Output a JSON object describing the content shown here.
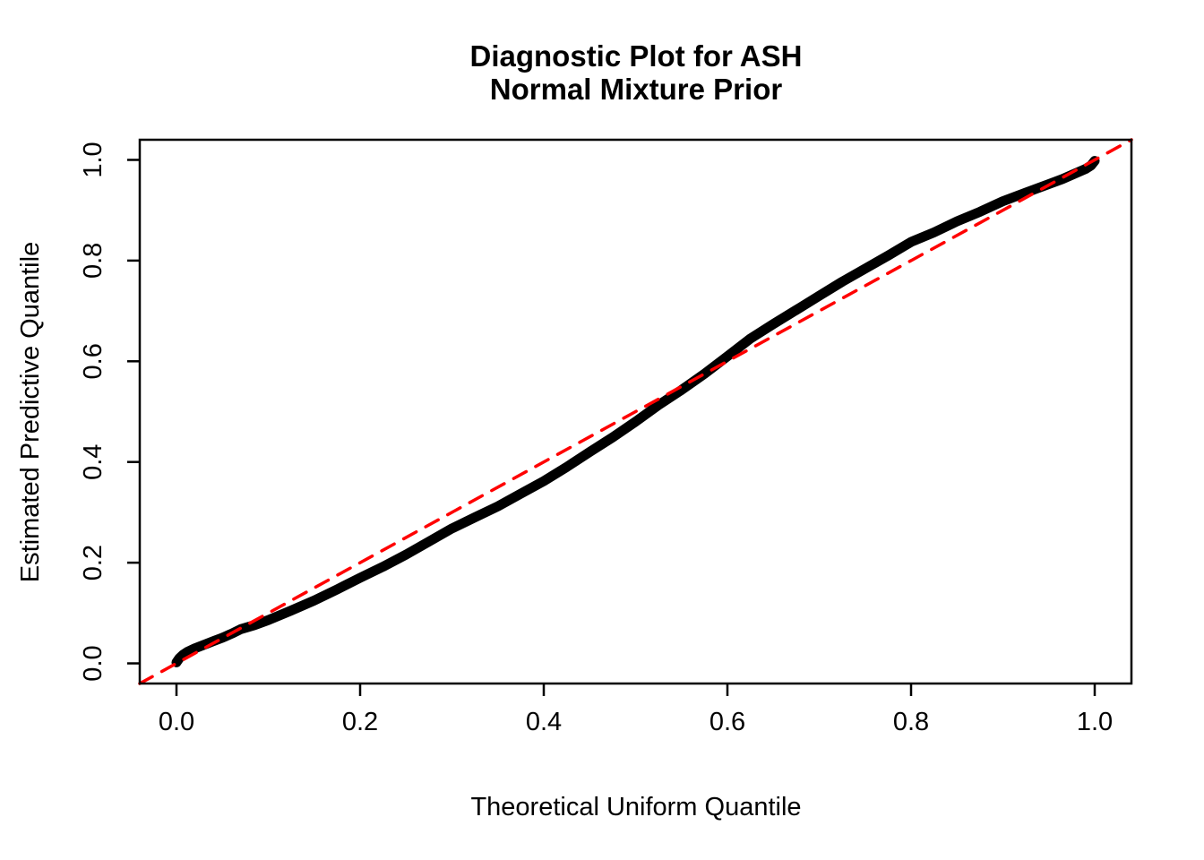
{
  "chart_data": {
    "type": "line",
    "title": "Diagnostic Plot for ASH",
    "subtitle": "Normal Mixture Prior",
    "xlabel": "Theoretical Uniform Quantile",
    "ylabel": "Estimated Predictive Quantile",
    "xlim": [
      -0.04,
      1.04
    ],
    "ylim": [
      -0.04,
      1.04
    ],
    "grid": false,
    "legend": "none",
    "background_color": "#ffffff",
    "box_color": "#000000",
    "xticks": {
      "values": [
        0.0,
        0.2,
        0.4,
        0.6,
        0.8,
        1.0
      ],
      "labels": [
        "0.0",
        "0.2",
        "0.4",
        "0.6",
        "0.8",
        "1.0"
      ]
    },
    "yticks": {
      "values": [
        0.0,
        0.2,
        0.4,
        0.6,
        0.8,
        1.0
      ],
      "labels": [
        "0.0",
        "0.2",
        "0.4",
        "0.6",
        "0.8",
        "1.0"
      ]
    },
    "series": [
      {
        "name": "estimated-predictive-quantile-curve",
        "style": "solid",
        "color": "#000000",
        "stroke_width": 11,
        "points": [
          [
            0.0,
            0.002
          ],
          [
            0.003,
            0.01
          ],
          [
            0.007,
            0.017
          ],
          [
            0.012,
            0.023
          ],
          [
            0.02,
            0.03
          ],
          [
            0.03,
            0.037
          ],
          [
            0.04,
            0.044
          ],
          [
            0.05,
            0.051
          ],
          [
            0.06,
            0.059
          ],
          [
            0.07,
            0.068
          ],
          [
            0.085,
            0.076
          ],
          [
            0.1,
            0.086
          ],
          [
            0.125,
            0.105
          ],
          [
            0.15,
            0.125
          ],
          [
            0.175,
            0.147
          ],
          [
            0.2,
            0.17
          ],
          [
            0.225,
            0.192
          ],
          [
            0.25,
            0.216
          ],
          [
            0.275,
            0.242
          ],
          [
            0.3,
            0.268
          ],
          [
            0.325,
            0.29
          ],
          [
            0.35,
            0.312
          ],
          [
            0.375,
            0.337
          ],
          [
            0.4,
            0.362
          ],
          [
            0.425,
            0.39
          ],
          [
            0.45,
            0.42
          ],
          [
            0.475,
            0.449
          ],
          [
            0.5,
            0.48
          ],
          [
            0.525,
            0.513
          ],
          [
            0.55,
            0.543
          ],
          [
            0.575,
            0.575
          ],
          [
            0.6,
            0.61
          ],
          [
            0.625,
            0.645
          ],
          [
            0.65,
            0.674
          ],
          [
            0.675,
            0.702
          ],
          [
            0.7,
            0.73
          ],
          [
            0.725,
            0.758
          ],
          [
            0.75,
            0.784
          ],
          [
            0.775,
            0.81
          ],
          [
            0.8,
            0.837
          ],
          [
            0.825,
            0.856
          ],
          [
            0.85,
            0.878
          ],
          [
            0.875,
            0.897
          ],
          [
            0.9,
            0.918
          ],
          [
            0.925,
            0.935
          ],
          [
            0.95,
            0.952
          ],
          [
            0.965,
            0.962
          ],
          [
            0.98,
            0.974
          ],
          [
            0.99,
            0.982
          ],
          [
            0.996,
            0.989
          ],
          [
            1.0,
            0.998
          ]
        ]
      },
      {
        "name": "identity-reference-line",
        "style": "dashed",
        "color": "#ff0000",
        "stroke_width": 3.5,
        "points": [
          [
            -0.04,
            -0.04
          ],
          [
            1.04,
            1.04
          ]
        ]
      }
    ]
  }
}
